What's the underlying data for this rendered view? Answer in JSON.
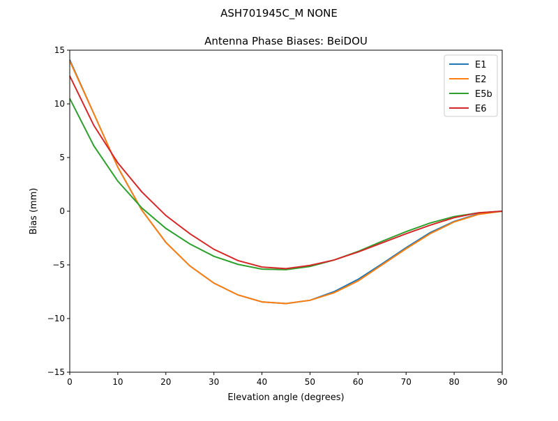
{
  "suptitle": "ASH701945C_M    NONE",
  "chart_data": {
    "type": "line",
    "title": "Antenna Phase Biases: BeiDOU",
    "xlabel": "Elevation angle (degrees)",
    "ylabel": "Bias (mm)",
    "xlim": [
      0,
      90
    ],
    "ylim": [
      -15,
      15
    ],
    "xticks": [
      0,
      10,
      20,
      30,
      40,
      50,
      60,
      70,
      80,
      90
    ],
    "yticks": [
      -15,
      -10,
      -5,
      0,
      5,
      10,
      15
    ],
    "ytick_labels": [
      "−15",
      "−10",
      "−5",
      "0",
      "5",
      "10",
      "15"
    ],
    "grid": false,
    "legend": "top-right",
    "x": [
      0,
      5,
      10,
      15,
      20,
      25,
      30,
      35,
      40,
      45,
      50,
      55,
      60,
      65,
      70,
      75,
      80,
      85,
      90
    ],
    "series": [
      {
        "name": "E1",
        "color": "#1f77b4",
        "values": [
          14.1,
          9.1,
          4.1,
          0.1,
          -2.9,
          -5.1,
          -6.7,
          -7.8,
          -8.45,
          -8.6,
          -8.3,
          -7.5,
          -6.35,
          -4.9,
          -3.4,
          -2.0,
          -0.95,
          -0.25,
          0
        ]
      },
      {
        "name": "E2",
        "color": "#ff7f0e",
        "values": [
          14.0,
          9.1,
          4.1,
          0.1,
          -2.9,
          -5.1,
          -6.7,
          -7.8,
          -8.45,
          -8.6,
          -8.3,
          -7.6,
          -6.5,
          -5.0,
          -3.5,
          -2.1,
          -1.0,
          -0.3,
          0
        ]
      },
      {
        "name": "E5b",
        "color": "#2ca02c",
        "values": [
          10.5,
          6.1,
          2.8,
          0.3,
          -1.6,
          -3.05,
          -4.2,
          -4.95,
          -5.4,
          -5.45,
          -5.15,
          -4.55,
          -3.75,
          -2.8,
          -1.9,
          -1.1,
          -0.5,
          -0.15,
          0
        ]
      },
      {
        "name": "E6",
        "color": "#d62728",
        "values": [
          12.6,
          8.0,
          4.5,
          1.8,
          -0.4,
          -2.1,
          -3.55,
          -4.6,
          -5.2,
          -5.35,
          -5.05,
          -4.55,
          -3.8,
          -2.95,
          -2.1,
          -1.3,
          -0.6,
          -0.15,
          0
        ]
      }
    ]
  }
}
